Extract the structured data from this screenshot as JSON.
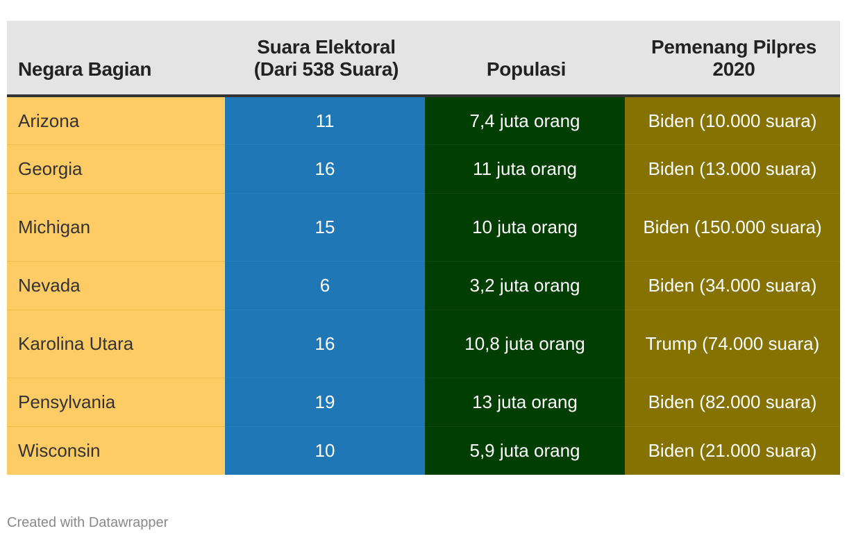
{
  "chart_data": {
    "type": "table",
    "columns": [
      {
        "key": "state",
        "label": "Negara Bagian"
      },
      {
        "key": "electoral_votes",
        "label": "Suara Elektoral (Dari 538 Suara)"
      },
      {
        "key": "population",
        "label": "Populasi"
      },
      {
        "key": "winner",
        "label": "Pemenang Pilpres 2020"
      }
    ],
    "rows": [
      {
        "state": "Arizona",
        "electoral_votes": "11",
        "population": "7,4 juta orang",
        "winner": "Biden (10.000 suara)"
      },
      {
        "state": "Georgia",
        "electoral_votes": "16",
        "population": "11 juta orang",
        "winner": "Biden (13.000 suara)"
      },
      {
        "state": "Michigan",
        "electoral_votes": "15",
        "population": "10 juta orang",
        "winner": "Biden (150.000 suara)"
      },
      {
        "state": "Nevada",
        "electoral_votes": "6",
        "population": "3,2 juta orang",
        "winner": "Biden (34.000 suara)"
      },
      {
        "state": "Karolina Utara",
        "electoral_votes": "16",
        "population": "10,8 juta orang",
        "winner": "Trump (74.000 suara)"
      },
      {
        "state": "Pensylvania",
        "electoral_votes": "19",
        "population": "13 juta orang",
        "winner": "Biden (82.000 suara)"
      },
      {
        "state": "Wisconsin",
        "electoral_votes": "10",
        "population": "5,9 juta orang",
        "winner": "Biden (21.000 suara)"
      }
    ],
    "column_colors": {
      "state": "#fecb65",
      "electoral_votes": "#1f77b5",
      "population": "#003e01",
      "winner": "#857200",
      "header": "#e4e4e4"
    }
  },
  "footer": {
    "credit": "Created with Datawrapper"
  }
}
